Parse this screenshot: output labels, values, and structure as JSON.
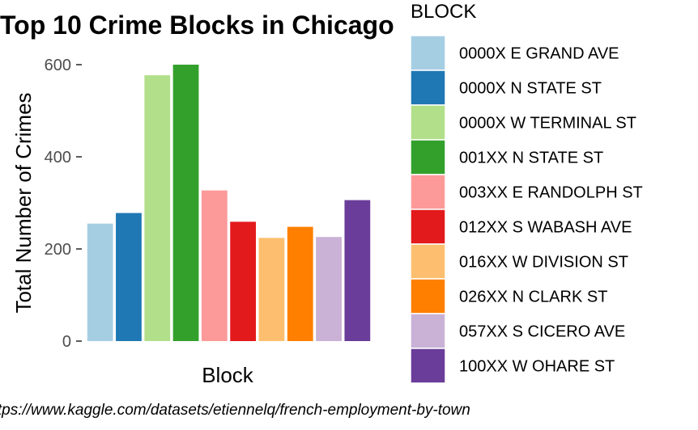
{
  "chart_data": {
    "type": "bar",
    "title": "Top 10 Crime Blocks in Chicago",
    "xlabel": "Block",
    "ylabel": "Total Number of Crimes",
    "ylim": [
      0,
      620
    ],
    "yticks": [
      0,
      200,
      400,
      600
    ],
    "grid": false,
    "legend": {
      "title": "BLOCK",
      "placement": "right"
    },
    "caption": "https://www.kaggle.com/datasets/etiennelq/french-employment-by-town",
    "categories": [
      "0000X E GRAND AVE",
      "0000X N STATE ST",
      "0000X W TERMINAL ST",
      "001XX N STATE ST",
      "003XX E RANDOLPH ST",
      "012XX S WABASH AVE",
      "016XX W DIVISION ST",
      "026XX N CLARK ST",
      "057XX S CICERO AVE",
      "100XX W OHARE ST"
    ],
    "values": [
      255,
      278,
      577,
      600,
      327,
      259,
      224,
      248,
      226,
      306
    ],
    "colors": [
      "#A6CEE3",
      "#1F78B4",
      "#B2DF8A",
      "#33A02C",
      "#FB9A99",
      "#E31A1C",
      "#FDBF6F",
      "#FF7F00",
      "#CAB2D6",
      "#6A3D9A"
    ]
  }
}
